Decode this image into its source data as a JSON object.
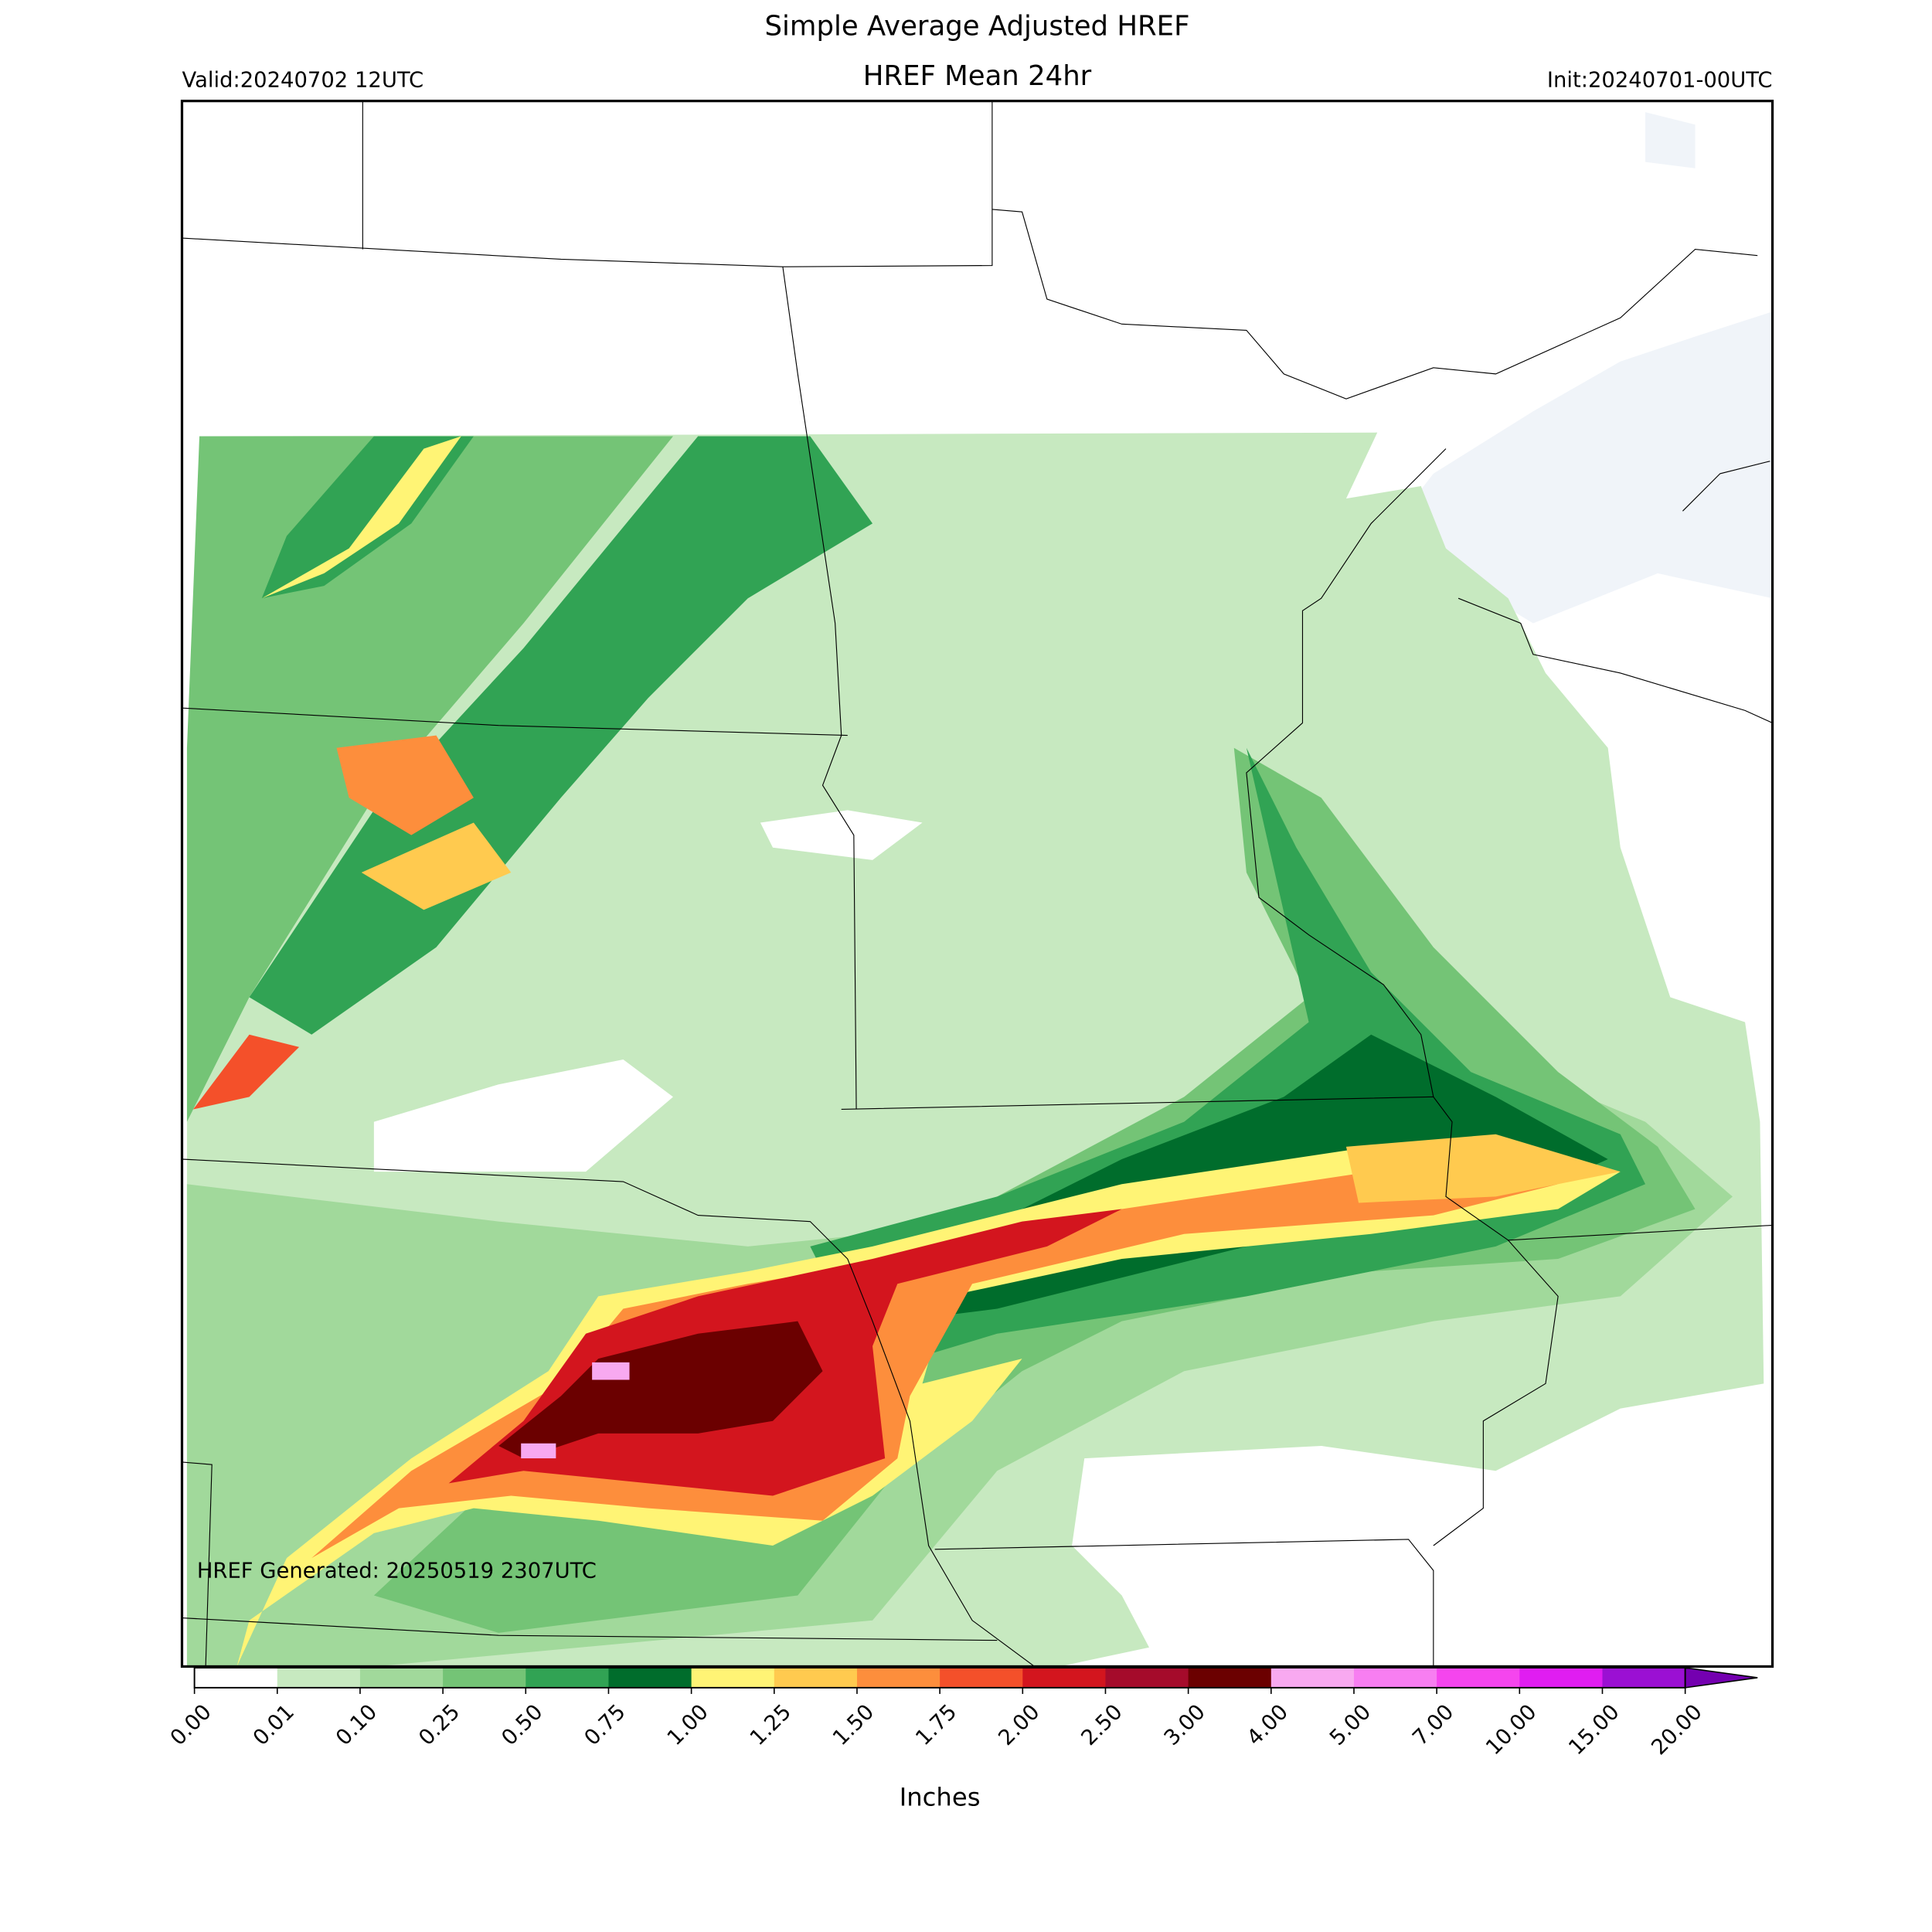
{
  "header": {
    "title": "Simple Average Adjusted HREF",
    "subtitle": "HREF Mean 24hr",
    "valid": "Valid:20240702 12UTC",
    "init": "Init:20240701-00UTC"
  },
  "map": {
    "footnote": "HREF Generated: 20250519 2307UTC"
  },
  "colorbar": {
    "label": "Inches",
    "ticks": [
      "0.00",
      "0.01",
      "0.10",
      "0.25",
      "0.50",
      "0.75",
      "1.00",
      "1.25",
      "1.50",
      "1.75",
      "2.00",
      "2.50",
      "3.00",
      "4.00",
      "5.00",
      "7.00",
      "10.00",
      "15.00",
      "20.00"
    ],
    "colors": [
      "#ffffff",
      "#c7e9c0",
      "#a1d99b",
      "#74c476",
      "#31a354",
      "#006d2c",
      "#fff475",
      "#ffca4f",
      "#fd8e3c",
      "#f4502a",
      "#d3151e",
      "#a50b2b",
      "#6b0000",
      "#f8a9f0",
      "#f77ef1",
      "#f545ee",
      "#e01df1",
      "#9b10d3"
    ],
    "extend_color": "#7400b0"
  }
}
